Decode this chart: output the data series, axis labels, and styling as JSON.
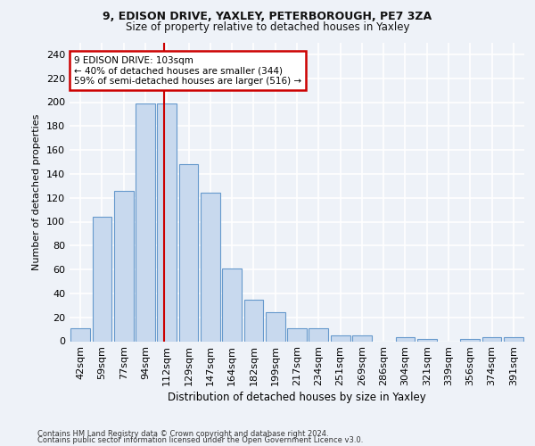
{
  "title1": "9, EDISON DRIVE, YAXLEY, PETERBOROUGH, PE7 3ZA",
  "title2": "Size of property relative to detached houses in Yaxley",
  "xlabel": "Distribution of detached houses by size in Yaxley",
  "ylabel": "Number of detached properties",
  "categories": [
    "42sqm",
    "59sqm",
    "77sqm",
    "94sqm",
    "112sqm",
    "129sqm",
    "147sqm",
    "164sqm",
    "182sqm",
    "199sqm",
    "217sqm",
    "234sqm",
    "251sqm",
    "269sqm",
    "286sqm",
    "304sqm",
    "321sqm",
    "339sqm",
    "356sqm",
    "374sqm",
    "391sqm"
  ],
  "values": [
    11,
    104,
    126,
    199,
    199,
    148,
    124,
    61,
    35,
    24,
    11,
    11,
    5,
    5,
    0,
    3,
    2,
    0,
    2,
    3,
    3
  ],
  "bar_color": "#c8d9ee",
  "bar_edge_color": "#6699cc",
  "ylim": [
    0,
    250
  ],
  "yticks": [
    0,
    20,
    40,
    60,
    80,
    100,
    120,
    140,
    160,
    180,
    200,
    220,
    240
  ],
  "annotation_title": "9 EDISON DRIVE: 103sqm",
  "annotation_line1": "← 40% of detached houses are smaller (344)",
  "annotation_line2": "59% of semi-detached houses are larger (516) →",
  "vline_x": 3.85,
  "vline_color": "#cc0000",
  "annotation_box_color": "#ffffff",
  "annotation_box_edge_color": "#cc0000",
  "footer1": "Contains HM Land Registry data © Crown copyright and database right 2024.",
  "footer2": "Contains public sector information licensed under the Open Government Licence v3.0.",
  "bg_color": "#eef2f8",
  "grid_color": "#ffffff"
}
